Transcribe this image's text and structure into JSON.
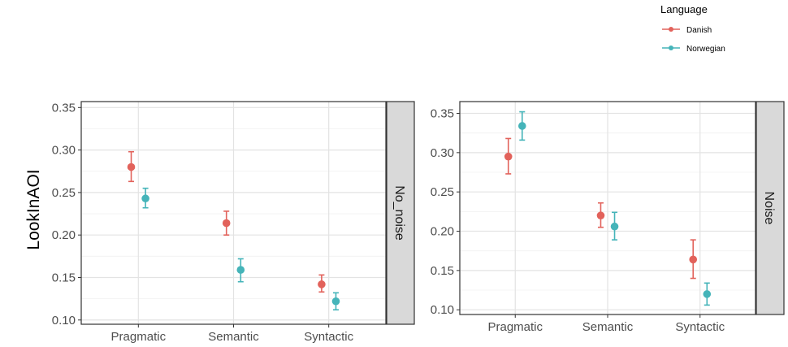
{
  "chart_data": {
    "type": "scatter",
    "ylabel": "LookInAOI",
    "categories": [
      "Pragmatic",
      "Semantic",
      "Syntactic"
    ],
    "legend": {
      "title": "Language",
      "position": "top-right",
      "entries": [
        {
          "name": "Danish",
          "color": "#E2625B"
        },
        {
          "name": "Norwegian",
          "color": "#45B4B9"
        }
      ]
    },
    "grid": true,
    "panels": [
      {
        "strip": "No_noise",
        "ylim": [
          0.095,
          0.357
        ],
        "yticks": [
          "0.10",
          "0.15",
          "0.20",
          "0.25",
          "0.30",
          "0.35"
        ],
        "series": [
          {
            "name": "Danish",
            "color": "#E2625B",
            "values": [
              0.28,
              0.214,
              0.142
            ],
            "lower": [
              0.263,
              0.2,
              0.133
            ],
            "upper": [
              0.298,
              0.228,
              0.153
            ]
          },
          {
            "name": "Norwegian",
            "color": "#45B4B9",
            "values": [
              0.243,
              0.159,
              0.122
            ],
            "lower": [
              0.232,
              0.145,
              0.112
            ],
            "upper": [
              0.255,
              0.172,
              0.132
            ]
          }
        ]
      },
      {
        "strip": "Noise",
        "ylim": [
          0.094,
          0.365
        ],
        "yticks": [
          "0.10",
          "0.15",
          "0.20",
          "0.25",
          "0.30",
          "0.35"
        ],
        "series": [
          {
            "name": "Danish",
            "color": "#E2625B",
            "values": [
              0.295,
              0.22,
              0.164
            ],
            "lower": [
              0.273,
              0.205,
              0.14
            ],
            "upper": [
              0.318,
              0.236,
              0.189
            ]
          },
          {
            "name": "Norwegian",
            "color": "#45B4B9",
            "values": [
              0.334,
              0.206,
              0.12
            ],
            "lower": [
              0.316,
              0.189,
              0.106
            ],
            "upper": [
              0.352,
              0.224,
              0.134
            ]
          }
        ]
      }
    ]
  }
}
